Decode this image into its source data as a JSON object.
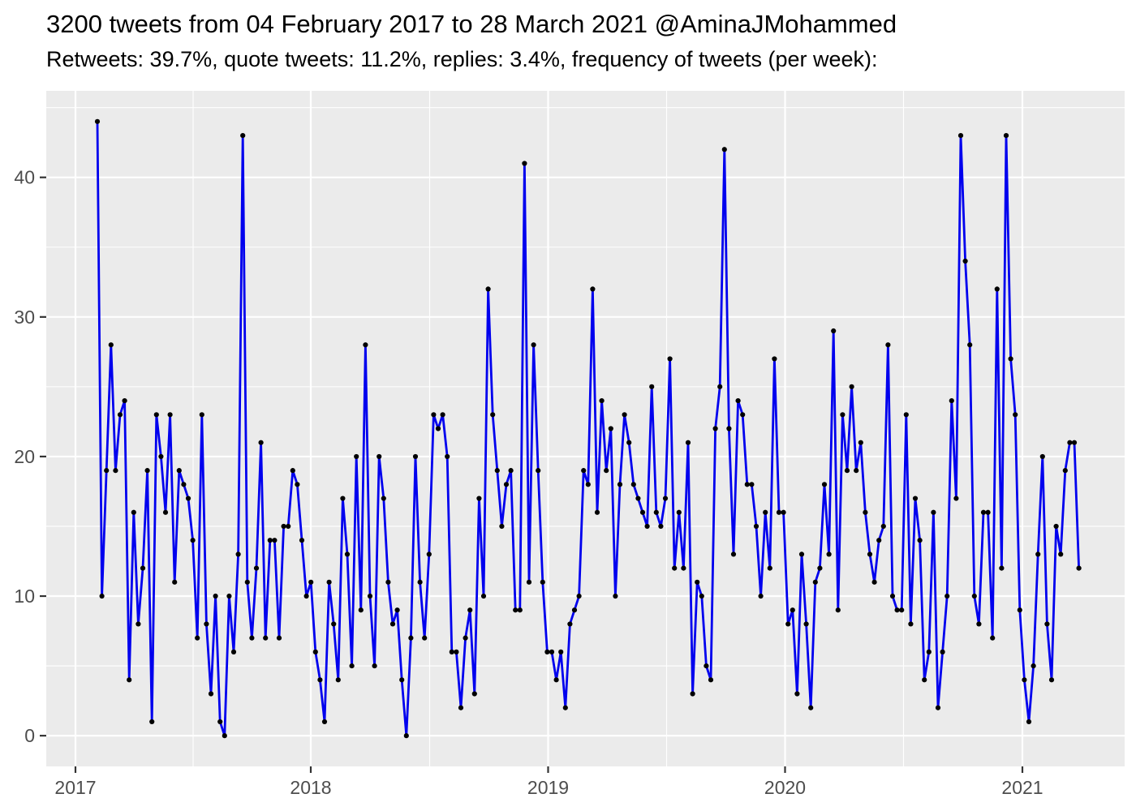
{
  "header": {
    "title": "3200 tweets from 04 February 2017 to 28 March 2021 @AminaJMohammed",
    "subtitle": "Retweets: 39.7%, quote tweets: 11.2%, replies: 3.4%, frequency of tweets (per week):"
  },
  "colors": {
    "line": "#0000EE",
    "point": "#000000",
    "panel_bg": "#EBEBEB",
    "grid_major": "#FFFFFF",
    "grid_minor": "#FFFFFF",
    "axis_text": "#4D4D4D",
    "tick_mark": "#333333",
    "title_text": "#000000",
    "page_bg": "#FFFFFF"
  },
  "chart_data": {
    "type": "line",
    "title": "3200 tweets from 04 February 2017 to 28 March 2021 @AminaJMohammed",
    "subtitle": "Retweets: 39.7%, quote tweets: 11.2%, replies: 3.4%, frequency of tweets (per week):",
    "ylabel": "",
    "xlabel": "",
    "legend": "none",
    "grid": "on",
    "x_start_date": "2017-02-04",
    "x_end_date": "2021-03-28",
    "frequency": "weekly",
    "x_tick_labels": [
      "2017",
      "2018",
      "2019",
      "2020",
      "2021"
    ],
    "y_tick_labels": [
      "0",
      "10",
      "20",
      "30",
      "40"
    ],
    "y_major_ticks": [
      0,
      10,
      20,
      30,
      40
    ],
    "y_minor_ticks": [
      5,
      15,
      25,
      35,
      45
    ],
    "ylim": [
      -2.2,
      46.2
    ],
    "values": [
      44,
      10,
      19,
      28,
      19,
      23,
      24,
      4,
      16,
      8,
      12,
      19,
      1,
      23,
      20,
      16,
      23,
      11,
      19,
      18,
      17,
      14,
      7,
      23,
      8,
      3,
      10,
      1,
      0,
      10,
      6,
      13,
      43,
      11,
      7,
      12,
      21,
      7,
      14,
      14,
      7,
      15,
      15,
      19,
      18,
      14,
      10,
      11,
      6,
      4,
      1,
      11,
      8,
      4,
      17,
      13,
      5,
      20,
      9,
      28,
      10,
      5,
      20,
      17,
      11,
      8,
      9,
      4,
      0,
      7,
      20,
      11,
      7,
      13,
      23,
      22,
      23,
      20,
      6,
      6,
      2,
      7,
      9,
      3,
      17,
      10,
      32,
      23,
      19,
      15,
      18,
      19,
      9,
      9,
      41,
      11,
      28,
      19,
      11,
      6,
      6,
      4,
      6,
      2,
      8,
      9,
      10,
      19,
      18,
      32,
      16,
      24,
      19,
      22,
      10,
      18,
      23,
      21,
      18,
      17,
      16,
      15,
      25,
      16,
      15,
      17,
      27,
      12,
      16,
      12,
      21,
      3,
      11,
      10,
      5,
      4,
      22,
      25,
      42,
      22,
      13,
      24,
      23,
      18,
      18,
      15,
      10,
      16,
      12,
      27,
      16,
      16,
      8,
      9,
      3,
      13,
      8,
      2,
      11,
      12,
      18,
      13,
      29,
      9,
      23,
      19,
      25,
      19,
      21,
      16,
      13,
      11,
      14,
      15,
      28,
      10,
      9,
      9,
      23,
      8,
      17,
      14,
      4,
      6,
      16,
      2,
      6,
      10,
      24,
      17,
      43,
      34,
      28,
      10,
      8,
      16,
      16,
      7,
      32,
      12,
      43,
      27,
      23,
      9,
      4,
      1,
      5,
      13,
      20,
      8,
      4,
      15,
      13,
      19,
      21,
      21,
      12
    ]
  }
}
